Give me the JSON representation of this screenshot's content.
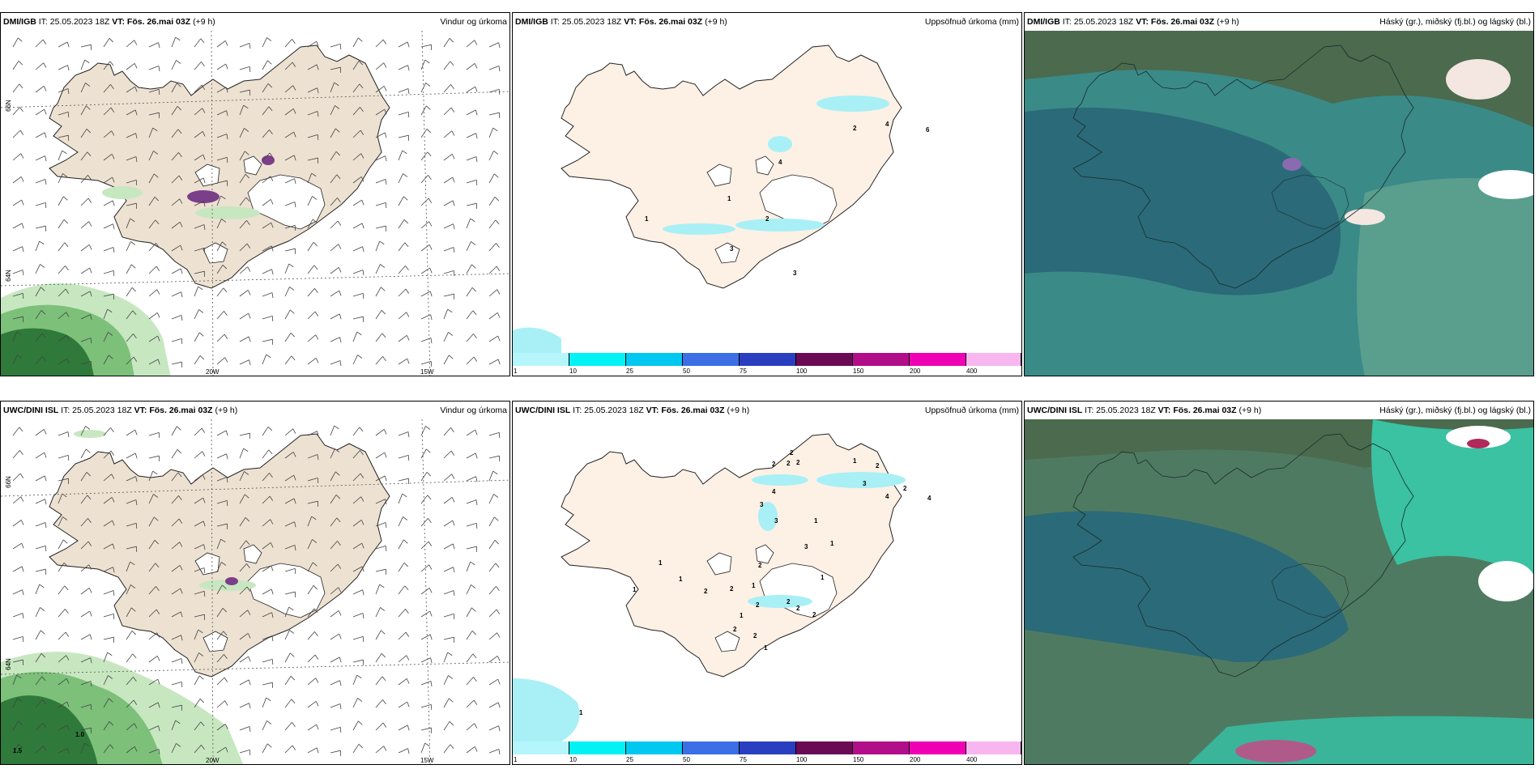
{
  "colors": {
    "land": "#ede1d1",
    "precip_land": "#fdf0e4",
    "cloud_base": "#2b6a78",
    "cloud_dark": "#2f5f6e",
    "cloud_teal": "#3aa99a",
    "green_dark": "#2f7a3a",
    "green_mid": "#7cc07a",
    "green_light": "#c7e7c0",
    "cyan_light": "#a8f0f5"
  },
  "colorbar": {
    "labels": [
      "1",
      "10",
      "25",
      "50",
      "75",
      "100",
      "150",
      "200",
      "400"
    ],
    "colors": [
      "#b4f6fb",
      "#00f2f5",
      "#00c8f0",
      "#3c6fe6",
      "#2a3fc0",
      "#6a0a55",
      "#b20e8a",
      "#f000b5",
      "#f8b6f0"
    ]
  },
  "panels": [
    {
      "id": "p1",
      "model": "DMI/IGB",
      "it": "IT: 25.05.2023 18Z",
      "vt": "VT: Fös. 26.mai 03Z",
      "lead": "(+9 h)",
      "title": "Vindur og úrkoma"
    },
    {
      "id": "p2",
      "model": "DMI/IGB",
      "it": "IT: 25.05.2023 18Z",
      "vt": "VT: Fös. 26.mai 03Z",
      "lead": "(+9 h)",
      "title": "Uppsöfnuð úrkoma (mm)"
    },
    {
      "id": "p3",
      "model": "DMI/IGB",
      "it": "IT: 25.05.2023 18Z",
      "vt": "VT: Fös. 26.mai 03Z",
      "lead": "(+9 h)",
      "title": "Háský (gr.), miðský (fj.bl.) og lágský (bl.)"
    },
    {
      "id": "p4",
      "model": "UWC/DINI ISL",
      "it": "IT: 25.05.2023 18Z",
      "vt": "VT: Fös. 26.mai 03Z",
      "lead": "(+9 h)",
      "title": "Vindur og úrkoma"
    },
    {
      "id": "p5",
      "model": "UWC/DINI ISL",
      "it": "IT: 25.05.2023 18Z",
      "vt": "VT: Fös. 26.mai 03Z",
      "lead": "(+9 h)",
      "title": "Uppsöfnuð úrkoma (mm)"
    },
    {
      "id": "p6",
      "model": "UWC/DINI ISL",
      "it": "IT: 25.05.2023 18Z",
      "vt": "VT: Fös. 26.mai 03Z",
      "lead": "(+9 h)",
      "title": "Háský (gr.), miðský (fj.bl.) og lágský (bl.)"
    }
  ],
  "grid_labels": {
    "lon1": "20W",
    "lon2": "15W",
    "lat1": "66N",
    "lat2": "64N"
  },
  "p2_numbers": [
    "2",
    "4",
    "6",
    "4",
    "1",
    "1",
    "2",
    "3",
    "3"
  ],
  "p4_numbers": [
    "1.0",
    "1.5"
  ],
  "p5_numbers": [
    "2",
    "2",
    "2",
    "2",
    "1",
    "2",
    "3",
    "4",
    "2",
    "4",
    "4",
    "3",
    "3",
    "1",
    "1",
    "2",
    "1",
    "2",
    "2",
    "1",
    "1",
    "1",
    "2",
    "2",
    "2",
    "1",
    "2",
    "2",
    "2",
    "1",
    "3",
    "1",
    "1"
  ]
}
